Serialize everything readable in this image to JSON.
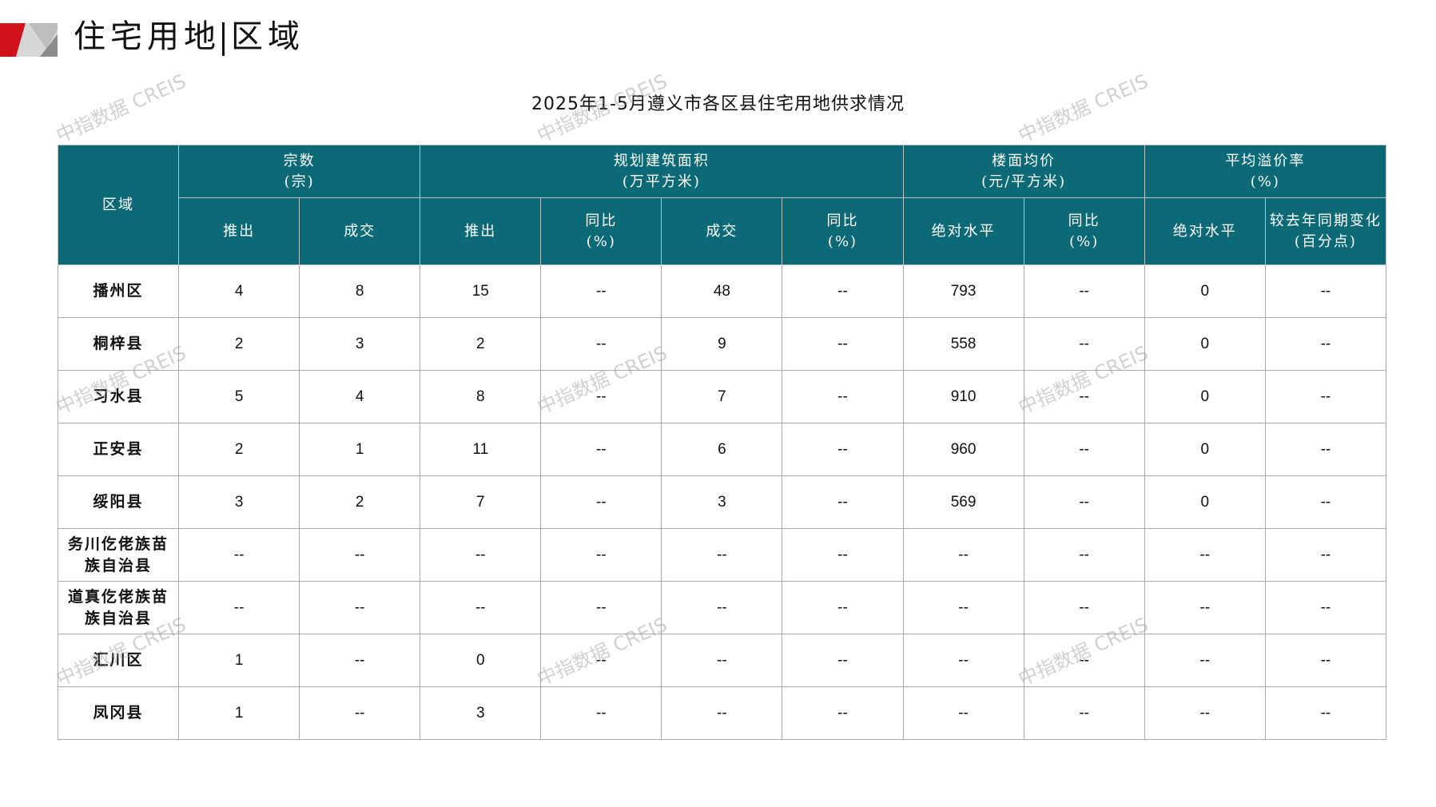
{
  "header": {
    "title_left": "住宅用地",
    "title_right": "区域"
  },
  "colors": {
    "accent_red": "#d0121b",
    "header_teal": "#0b6a76"
  },
  "table_title": "2025年1-5月遵义市各区县住宅用地供求情况",
  "watermark": "中指数据 CREIS",
  "columns": {
    "region": "区域",
    "groups": [
      {
        "label": "宗数",
        "unit": "(宗)"
      },
      {
        "label": "规划建筑面积",
        "unit": "(万平方米)"
      },
      {
        "label": "楼面均价",
        "unit": "(元/平方米)"
      },
      {
        "label": "平均溢价率",
        "unit": "(%)"
      }
    ],
    "sub": [
      {
        "l1": "推出"
      },
      {
        "l1": "成交"
      },
      {
        "l1": "推出"
      },
      {
        "l1": "同比",
        "l2": "(%)"
      },
      {
        "l1": "成交"
      },
      {
        "l1": "同比",
        "l2": "(%)"
      },
      {
        "l1": "绝对水平"
      },
      {
        "l1": "同比",
        "l2": "(%)"
      },
      {
        "l1": "绝对水平"
      },
      {
        "l1": "较去年同期变化",
        "l2": "(百分点)"
      }
    ]
  },
  "rows": [
    {
      "region": "播州区",
      "cells": [
        "4",
        "8",
        "15",
        "--",
        "48",
        "--",
        "793",
        "--",
        "0",
        "--"
      ]
    },
    {
      "region": "桐梓县",
      "cells": [
        "2",
        "3",
        "2",
        "--",
        "9",
        "--",
        "558",
        "--",
        "0",
        "--"
      ]
    },
    {
      "region": "习水县",
      "cells": [
        "5",
        "4",
        "8",
        "--",
        "7",
        "--",
        "910",
        "--",
        "0",
        "--"
      ]
    },
    {
      "region": "正安县",
      "cells": [
        "2",
        "1",
        "11",
        "--",
        "6",
        "--",
        "960",
        "--",
        "0",
        "--"
      ]
    },
    {
      "region": "绥阳县",
      "cells": [
        "3",
        "2",
        "7",
        "--",
        "3",
        "--",
        "569",
        "--",
        "0",
        "--"
      ]
    },
    {
      "region": "务川仡佬族苗族自治县",
      "cells": [
        "--",
        "--",
        "--",
        "--",
        "--",
        "--",
        "--",
        "--",
        "--",
        "--"
      ]
    },
    {
      "region": "道真仡佬族苗族自治县",
      "cells": [
        "--",
        "--",
        "--",
        "--",
        "--",
        "--",
        "--",
        "--",
        "--",
        "--"
      ]
    },
    {
      "region": "汇川区",
      "cells": [
        "1",
        "--",
        "0",
        "--",
        "--",
        "--",
        "--",
        "--",
        "--",
        "--"
      ]
    },
    {
      "region": "凤冈县",
      "cells": [
        "1",
        "--",
        "3",
        "--",
        "--",
        "--",
        "--",
        "--",
        "--",
        "--"
      ]
    }
  ]
}
